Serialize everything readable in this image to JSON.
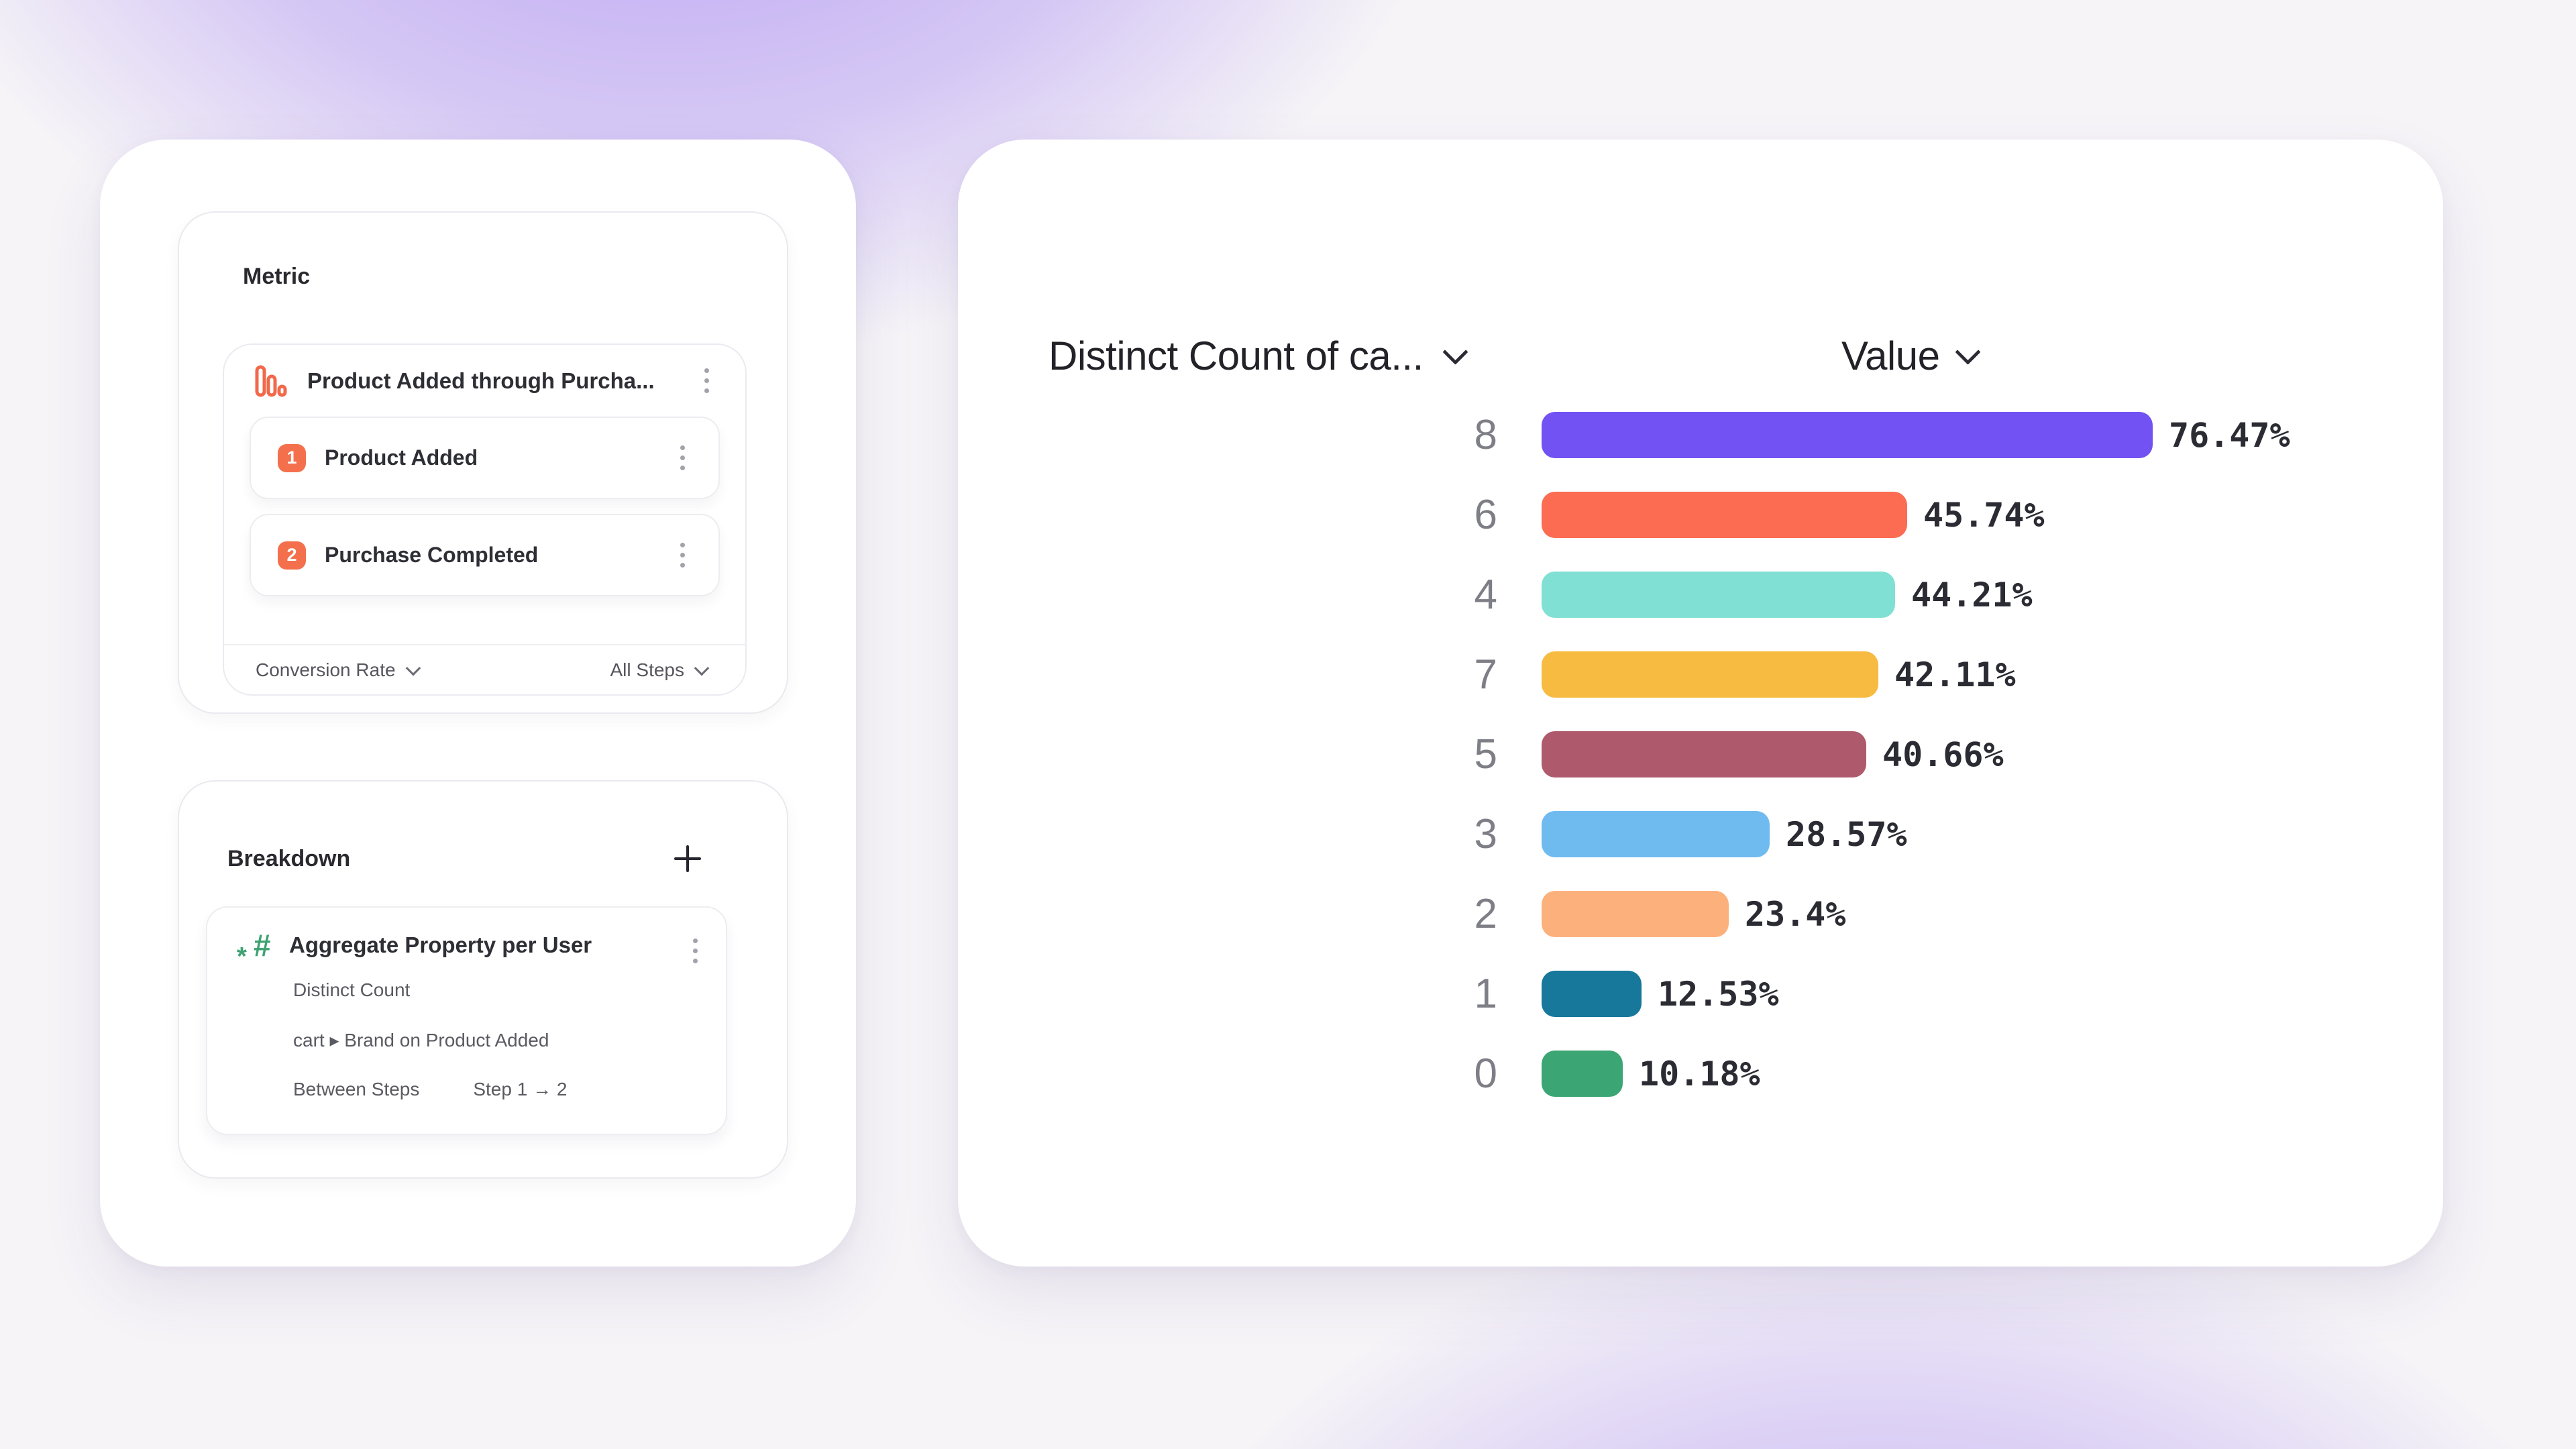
{
  "metric_panel": {
    "title": "Metric",
    "funnel": {
      "title": "Product Added through Purcha...",
      "steps": [
        {
          "number": "1",
          "label": "Product Added"
        },
        {
          "number": "2",
          "label": "Purchase Completed"
        }
      ],
      "measure_dropdown": "Conversion Rate",
      "steps_dropdown": "All Steps"
    }
  },
  "breakdown_panel": {
    "title": "Breakdown",
    "card": {
      "title": "Aggregate Property per User",
      "aggregation": "Distinct Count",
      "property": "cart ▸ Brand on Product Added",
      "scope_label": "Between Steps",
      "scope_value": "Step 1 → 2"
    }
  },
  "chart": {
    "left_header": "Distinct Count of ca...",
    "right_header": "Value"
  },
  "chart_data": {
    "type": "bar",
    "orientation": "horizontal",
    "title": "",
    "xlabel": "Value",
    "ylabel": "Distinct Count of ca...",
    "categories": [
      "8",
      "6",
      "4",
      "7",
      "5",
      "3",
      "2",
      "1",
      "0"
    ],
    "values": [
      76.47,
      45.74,
      44.21,
      42.11,
      40.66,
      28.57,
      23.4,
      12.53,
      10.18
    ],
    "value_labels": [
      "76.47%",
      "45.74%",
      "44.21%",
      "42.11%",
      "40.66%",
      "28.57%",
      "23.4%",
      "12.53%",
      "10.18%"
    ],
    "bar_colors": [
      "#7252f2",
      "#fb6c52",
      "#7fe0d3",
      "#f6bb40",
      "#ae5a6c",
      "#6fbbf0",
      "#fcb17d",
      "#17789b",
      "#3ba573"
    ],
    "xlim": [
      0,
      80
    ],
    "grid": false,
    "legend": false,
    "accent_colors": {
      "step_badge": "#f4704d",
      "funnel_icon": "#f2684b",
      "hash_icon": "#3ea273"
    }
  }
}
